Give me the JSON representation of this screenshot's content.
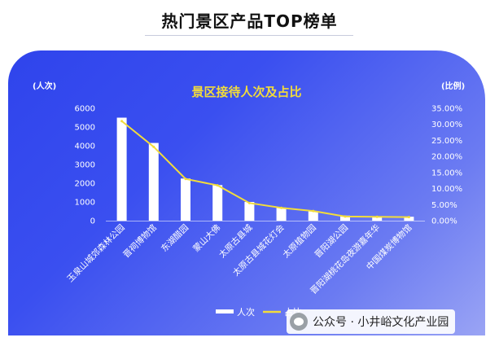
{
  "header": {
    "title": "热门景区产品TOP榜单"
  },
  "footer": {
    "text": "公众号 · 小井峪文化产业园"
  },
  "chart_data": {
    "type": "bar",
    "title": "景区接待人次及占比",
    "ylabel": "(人次)",
    "y2label": "(比例)",
    "categories": [
      "玉泉山城郊森林公园",
      "晋祠博物馆",
      "东湖醋园",
      "蒙山大佛",
      "太原古县城",
      "太原古县城花灯会",
      "太原植物园",
      "晋阳湖公园",
      "晋阳湖桃花岛夜游嘉年华",
      "中国煤炭博物馆"
    ],
    "series": [
      {
        "name": "人次",
        "type": "bar",
        "axis": "left",
        "values": [
          5500,
          4150,
          2250,
          1900,
          1000,
          700,
          520,
          270,
          230,
          210
        ]
      },
      {
        "name": "占比",
        "type": "line",
        "axis": "right",
        "values": [
          31.0,
          23.0,
          13.0,
          11.0,
          5.5,
          4.0,
          3.0,
          1.3,
          1.2,
          1.1
        ]
      }
    ],
    "ylim": [
      0,
      6000
    ],
    "yticks": [
      "0",
      "1000",
      "2000",
      "3000",
      "4000",
      "5000",
      "6000"
    ],
    "y2lim": [
      0,
      35
    ],
    "y2ticks": [
      "0.00%",
      "5.00%",
      "10.00%",
      "15.00%",
      "20.00%",
      "25.00%",
      "30.00%",
      "35.00%"
    ],
    "grid": false,
    "legend": "bottom-center",
    "colors": {
      "bars": "#ffffff",
      "line": "#f2dc3b",
      "title": "#f2dc3b",
      "text": "#ffffff"
    }
  }
}
